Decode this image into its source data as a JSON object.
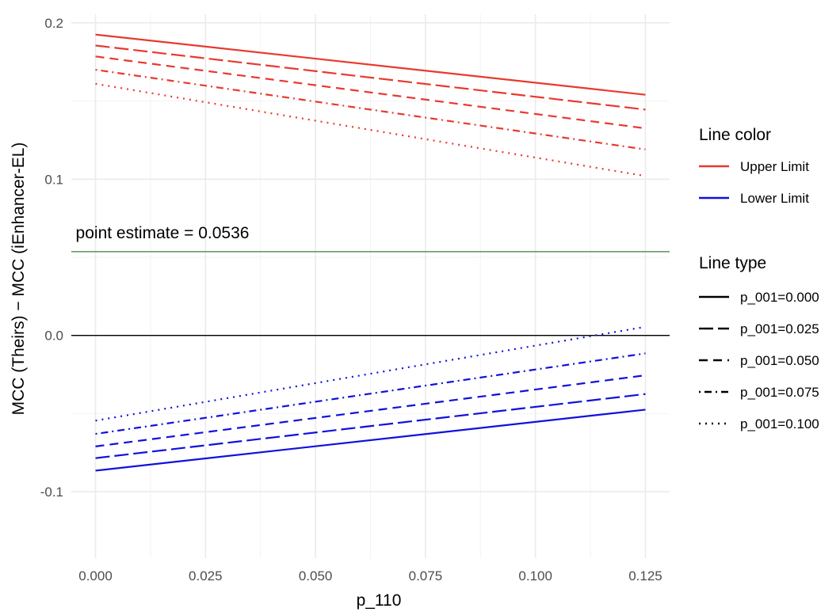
{
  "chart_data": {
    "type": "line",
    "xlabel": "p_110",
    "ylabel": "MCC (Theirs) − MCC (iEnhancer-EL)",
    "xlim": [
      -0.0055,
      0.1305
    ],
    "ylim": [
      -0.1425,
      0.2055
    ],
    "x_ticks": [
      0.0,
      0.025,
      0.05,
      0.075,
      0.1,
      0.125
    ],
    "x_tick_labels": [
      "0.000",
      "0.025",
      "0.050",
      "0.075",
      "0.100",
      "0.125"
    ],
    "y_ticks": [
      -0.1,
      0.0,
      0.1,
      0.2
    ],
    "y_tick_labels": [
      "-0.1",
      "0.0",
      "0.1",
      "0.2"
    ],
    "grid": true,
    "x": [
      0.0,
      0.125
    ],
    "colors": {
      "Upper Limit": "#e8392e",
      "Lower Limit": "#1010dd",
      "point_estimate": "#3f7a3f",
      "zero_line": "#000000"
    },
    "series": [
      {
        "name": "Upper Limit",
        "linetype": "p_001=0.000",
        "dash": "solid",
        "y": [
          0.1925,
          0.154
        ]
      },
      {
        "name": "Upper Limit",
        "linetype": "p_001=0.025",
        "dash": "longdash",
        "y": [
          0.1855,
          0.1445
        ]
      },
      {
        "name": "Upper Limit",
        "linetype": "p_001=0.050",
        "dash": "dashed",
        "y": [
          0.1785,
          0.1325
        ]
      },
      {
        "name": "Upper Limit",
        "linetype": "p_001=0.075",
        "dash": "dotdash",
        "y": [
          0.17,
          0.119
        ]
      },
      {
        "name": "Upper Limit",
        "linetype": "p_001=0.100",
        "dash": "dotted",
        "y": [
          0.161,
          0.102
        ]
      },
      {
        "name": "Lower Limit",
        "linetype": "p_001=0.000",
        "dash": "solid",
        "y": [
          -0.0865,
          -0.0475
        ]
      },
      {
        "name": "Lower Limit",
        "linetype": "p_001=0.025",
        "dash": "longdash",
        "y": [
          -0.0785,
          -0.0375
        ]
      },
      {
        "name": "Lower Limit",
        "linetype": "p_001=0.050",
        "dash": "dashed",
        "y": [
          -0.071,
          -0.0255
        ]
      },
      {
        "name": "Lower Limit",
        "linetype": "p_001=0.075",
        "dash": "dotdash",
        "y": [
          -0.063,
          -0.0115
        ]
      },
      {
        "name": "Lower Limit",
        "linetype": "p_001=0.100",
        "dash": "dotted",
        "y": [
          -0.0545,
          0.0055
        ]
      }
    ],
    "point_estimate": {
      "value": 0.0536,
      "label": "point estimate = 0.0536"
    },
    "zero_line": 0.0,
    "legend": {
      "position": "right",
      "color": {
        "title": "Line color",
        "entries": [
          {
            "label": "Upper Limit",
            "color": "#e8392e"
          },
          {
            "label": "Lower Limit",
            "color": "#1010dd"
          }
        ]
      },
      "linetype": {
        "title": "Line type",
        "entries": [
          {
            "label": "p_001=0.000",
            "dash": "solid"
          },
          {
            "label": "p_001=0.025",
            "dash": "longdash"
          },
          {
            "label": "p_001=0.050",
            "dash": "dashed"
          },
          {
            "label": "p_001=0.075",
            "dash": "dotdash"
          },
          {
            "label": "p_001=0.100",
            "dash": "dotted"
          }
        ]
      }
    }
  }
}
